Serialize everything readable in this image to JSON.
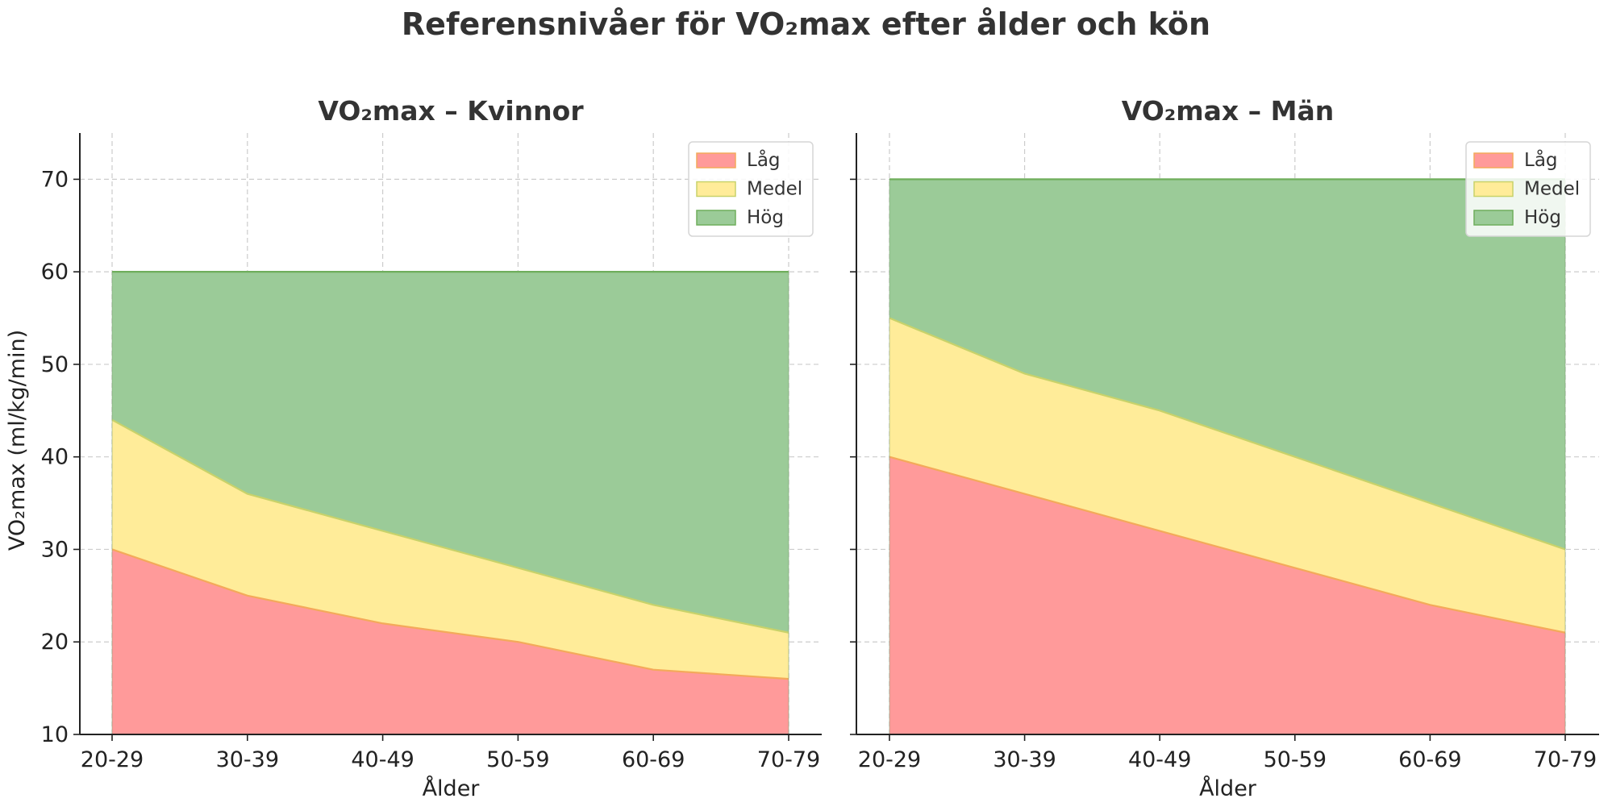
{
  "figure": {
    "title": "Referensnivåer för VO₂max efter ålder och kön"
  },
  "colors": {
    "low_fill": "#ff9a9a",
    "low_line": "#f4a95a",
    "medium_fill": "#ffec99",
    "medium_line": "#c8d26a",
    "high_fill": "#9bcb98",
    "high_line": "#6fae5c",
    "grid": "#cccccc",
    "axis": "#222222"
  },
  "chart_data": [
    {
      "type": "area",
      "stacked": false,
      "title": "VO₂max – Kvinnor",
      "xlabel": "Ålder",
      "ylabel": "VO₂max (ml/kg/min)",
      "categories": [
        "20-29",
        "30-39",
        "40-49",
        "50-59",
        "60-69",
        "70-79"
      ],
      "ylim": [
        10,
        75
      ],
      "yticks": [
        10,
        20,
        30,
        40,
        50,
        60,
        70
      ],
      "grid": true,
      "legend_position": "top-right",
      "series": [
        {
          "name": "Låg",
          "upper": [
            30,
            25,
            22,
            20,
            17,
            16
          ],
          "lower": [
            10,
            10,
            10,
            10,
            10,
            10
          ]
        },
        {
          "name": "Medel",
          "upper": [
            44,
            36,
            32,
            28,
            24,
            21
          ],
          "lower": [
            30,
            25,
            22,
            20,
            17,
            16
          ]
        },
        {
          "name": "Hög",
          "upper": [
            60,
            60,
            60,
            60,
            60,
            60
          ],
          "lower": [
            44,
            36,
            32,
            28,
            24,
            21
          ]
        }
      ]
    },
    {
      "type": "area",
      "stacked": false,
      "title": "VO₂max – Män",
      "xlabel": "Ålder",
      "ylabel": "",
      "categories": [
        "20-29",
        "30-39",
        "40-49",
        "50-59",
        "60-69",
        "70-79"
      ],
      "ylim": [
        10,
        75
      ],
      "yticks": [
        10,
        20,
        30,
        40,
        50,
        60,
        70
      ],
      "grid": true,
      "legend_position": "top-right",
      "series": [
        {
          "name": "Låg",
          "upper": [
            40,
            36,
            32,
            28,
            24,
            21
          ],
          "lower": [
            10,
            10,
            10,
            10,
            10,
            10
          ]
        },
        {
          "name": "Medel",
          "upper": [
            55,
            49,
            45,
            40,
            35,
            30
          ],
          "lower": [
            40,
            36,
            32,
            28,
            24,
            21
          ]
        },
        {
          "name": "Hög",
          "upper": [
            70,
            70,
            70,
            70,
            70,
            70
          ],
          "lower": [
            55,
            49,
            45,
            40,
            35,
            30
          ]
        }
      ]
    }
  ]
}
